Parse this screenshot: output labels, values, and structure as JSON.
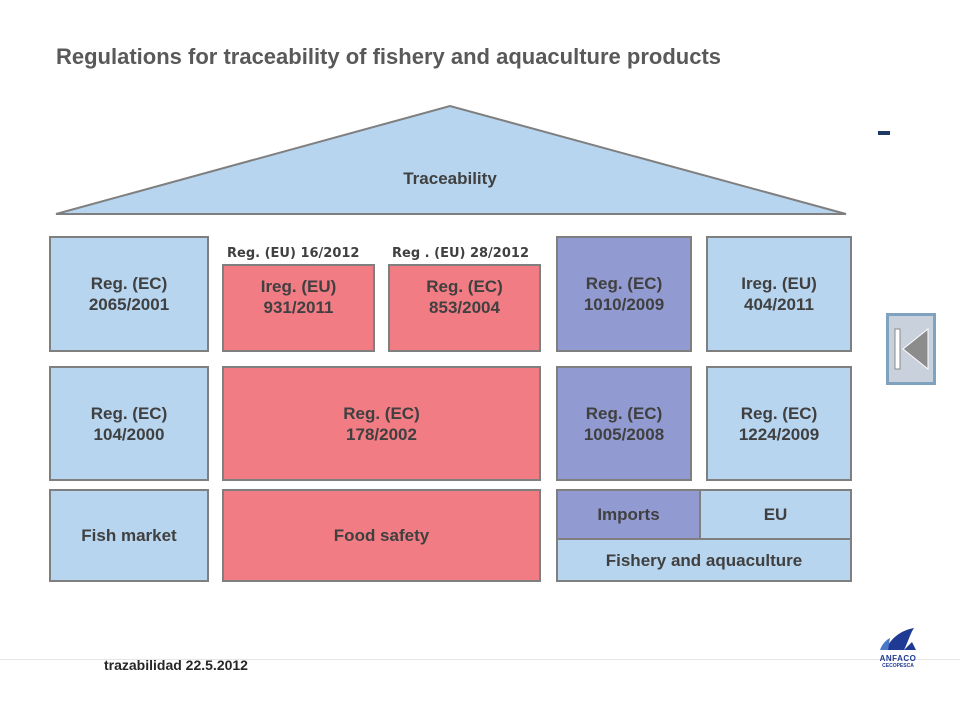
{
  "title": "Regulations for traceability of fishery and aquaculture products",
  "roof": {
    "label": "Traceability"
  },
  "annotations": {
    "left": "Reg. (EU) 16/2012",
    "right": "Reg . (EU) 28/2012"
  },
  "rows": {
    "top": [
      {
        "line1": "Reg.  (EC)",
        "line2": "2065/2001",
        "color": "light-blue"
      },
      {
        "line1": "Ireg.  (EU)",
        "line2": "931/2011",
        "color": "pink"
      },
      {
        "line1": "Reg.  (EC)",
        "line2": "853/2004",
        "color": "pink"
      },
      {
        "line1": "Reg.  (EC)",
        "line2": "1010/2009",
        "color": "purple"
      },
      {
        "line1": "Ireg.  (EU)",
        "line2": "404/2011",
        "color": "light-blue"
      }
    ],
    "middle": [
      {
        "line1": "Reg.  (EC)",
        "line2": "104/2000",
        "color": "light-blue"
      },
      {
        "line1": "Reg.  (EC)",
        "line2": "178/2002",
        "color": "pink"
      },
      {
        "line1": "Reg.  (EC)",
        "line2": "1005/2008",
        "color": "purple"
      },
      {
        "line1": "Reg.  (EC)",
        "line2": "1224/2009",
        "color": "light-blue"
      }
    ],
    "bottom": {
      "fish_market": "Fish market",
      "food_safety": "Food safety",
      "imports": "Imports",
      "eu": "EU",
      "fishery": "Fishery and aquaculture"
    }
  },
  "colors": {
    "light_blue": "#b7d5ef",
    "pink": "#f27c84",
    "purple": "#929bd1",
    "border": "#7f7f7f",
    "text": "#404040"
  },
  "nav": {
    "back_icon": "skip-back-icon"
  },
  "footer": {
    "text": "trazabilidad  22.5.2012"
  },
  "logo": {
    "name": "ANFACO",
    "subtitle": "CECOPESCA"
  }
}
